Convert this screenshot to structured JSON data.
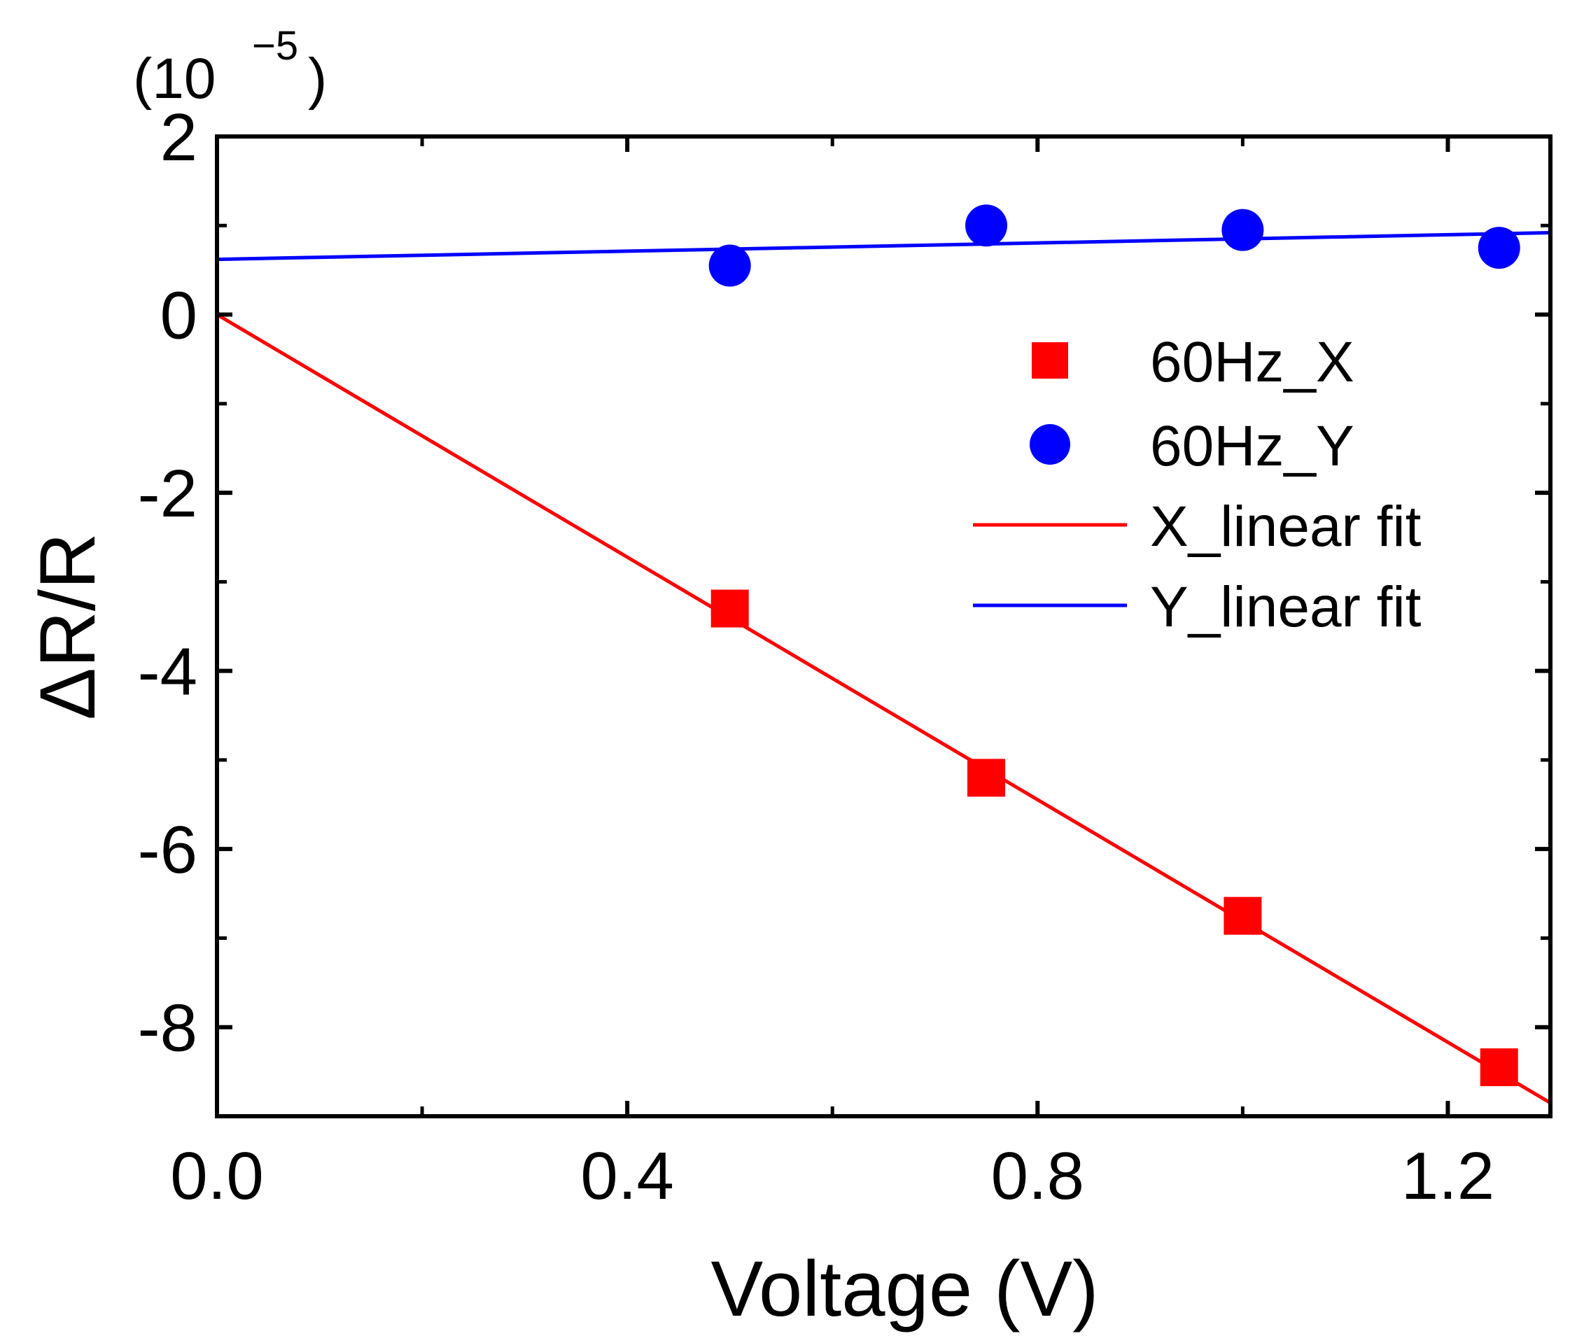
{
  "chart_data": {
    "type": "scatter",
    "xlabel": "Voltage (V)",
    "ylabel": "ΔR/R",
    "y_multiplier_label": {
      "base": "(10",
      "exponent": "−5",
      "close": ")"
    },
    "xlim": [
      0.0,
      1.3
    ],
    "ylim": [
      -9,
      2
    ],
    "x_major_ticks": [
      0.0,
      0.4,
      0.8,
      1.2
    ],
    "x_tick_labels": [
      "0.0",
      "0.4",
      "0.8",
      "1.2"
    ],
    "x_minor_ticks": [
      0.2,
      0.6,
      1.0
    ],
    "y_major_ticks": [
      2,
      0,
      -2,
      -4,
      -6,
      -8
    ],
    "y_tick_labels": [
      "2",
      "0",
      "-2",
      "-4",
      "-6",
      "-8"
    ],
    "y_minor_ticks": [
      1,
      -1,
      -3,
      -5,
      -7
    ],
    "grid": false,
    "legend_position": "right",
    "series": [
      {
        "name": "60Hz_X",
        "kind": "scatter",
        "marker": "square",
        "color": "#ff0000",
        "x": [
          0.5,
          0.75,
          1.0,
          1.25
        ],
        "y": [
          -3.3,
          -5.2,
          -6.75,
          -8.45
        ]
      },
      {
        "name": "60Hz_Y",
        "kind": "scatter",
        "marker": "circle",
        "color": "#0000ff",
        "x": [
          0.5,
          0.75,
          1.0,
          1.25
        ],
        "y": [
          0.55,
          1.0,
          0.95,
          0.75
        ]
      },
      {
        "name": "X_linear fit",
        "kind": "line",
        "color": "#ff0000",
        "x": [
          0.0,
          1.3
        ],
        "y": [
          0.0,
          -8.85
        ]
      },
      {
        "name": "Y_linear fit",
        "kind": "line",
        "color": "#0000ff",
        "x": [
          0.0,
          1.3
        ],
        "y": [
          0.62,
          0.92
        ]
      }
    ]
  }
}
